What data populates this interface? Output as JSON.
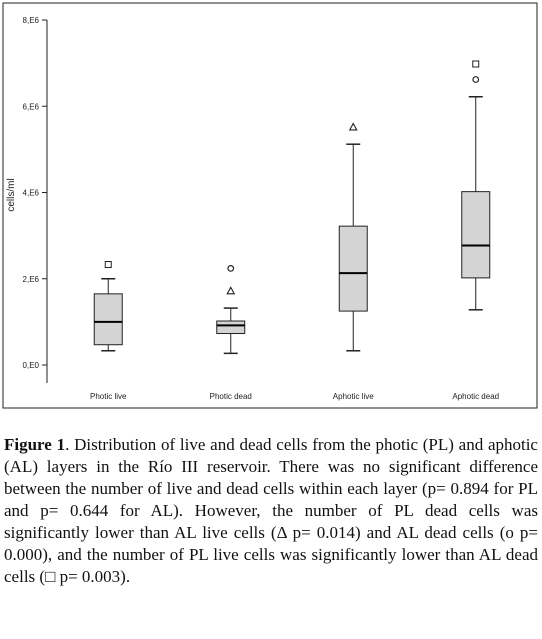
{
  "chart_data": {
    "type": "boxplot",
    "ylabel": "cells/ml",
    "ylim": [
      0,
      8000000
    ],
    "y_ticks": [
      0,
      2000000,
      4000000,
      6000000,
      8000000
    ],
    "y_tick_labels": [
      "0,E0",
      "2,E6",
      "4,E6",
      "6,E6",
      "8,E6"
    ],
    "categories": [
      "Photic live",
      "Photic dead",
      "Aphotic live",
      "Aphotic dead"
    ],
    "boxes": [
      {
        "min": 330000,
        "q1": 470000,
        "median": 1000000,
        "q3": 1650000,
        "max": 2000000,
        "outliers": [
          {
            "value": 2330000,
            "marker": "square"
          }
        ]
      },
      {
        "min": 270000,
        "q1": 730000,
        "median": 920000,
        "q3": 1020000,
        "max": 1320000,
        "outliers": [
          {
            "value": 2240000,
            "marker": "circle"
          },
          {
            "value": 1720000,
            "marker": "triangle"
          }
        ]
      },
      {
        "min": 330000,
        "q1": 1250000,
        "median": 2130000,
        "q3": 3220000,
        "max": 5120000,
        "outliers": [
          {
            "value": 5520000,
            "marker": "triangle"
          }
        ]
      },
      {
        "min": 1280000,
        "q1": 2020000,
        "median": 2770000,
        "q3": 4020000,
        "max": 6220000,
        "outliers": [
          {
            "value": 6620000,
            "marker": "circle"
          },
          {
            "value": 6980000,
            "marker": "square"
          }
        ]
      }
    ],
    "grid": false
  },
  "caption": {
    "label": "Figure 1",
    "text": ". Distribution of live and dead cells from the photic (PL) and aphotic (AL) layers in the Río III reservoir. There was no significant difference between the number of live and dead cells within each layer (p= 0.894 for PL and p= 0.644 for AL). However, the number of PL dead cells was significantly lower than AL live cells (Δ p= 0.014) and AL dead cells (o p= 0.000), and the number of PL live cells was significantly lower than AL dead cells (□ p= 0.003)."
  },
  "colors": {
    "box_fill": "#d4d4d4",
    "stroke": "#222222"
  }
}
